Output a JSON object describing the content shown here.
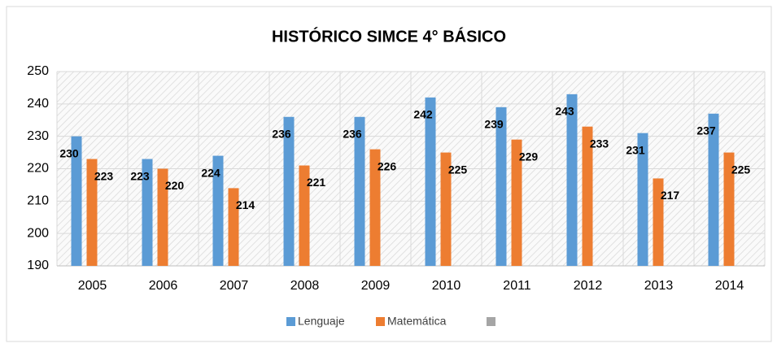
{
  "chart_data": {
    "type": "bar",
    "title": "HISTÓRICO SIMCE 4° BÁSICO",
    "categories": [
      "2005",
      "2006",
      "2007",
      "2008",
      "2009",
      "2010",
      "2011",
      "2012",
      "2013",
      "2014"
    ],
    "series": [
      {
        "name": "Lenguaje",
        "color": "#5b9bd5",
        "values": [
          230,
          223,
          224,
          236,
          236,
          242,
          239,
          243,
          231,
          237
        ]
      },
      {
        "name": "Matemática",
        "color": "#ed7d31",
        "values": [
          223,
          220,
          214,
          221,
          226,
          225,
          229,
          233,
          217,
          225
        ]
      }
    ],
    "ylim": [
      190,
      250
    ],
    "yticks": [
      190,
      200,
      210,
      220,
      230,
      240,
      250
    ],
    "grid": true
  }
}
